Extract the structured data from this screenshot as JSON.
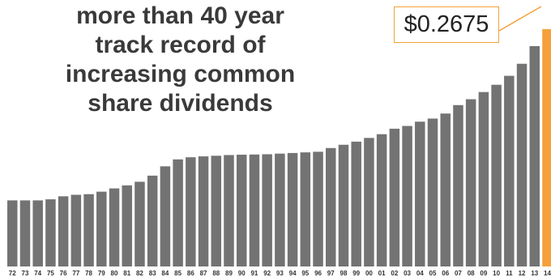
{
  "headline": {
    "line1": "more than 40 year",
    "line2": "track record of",
    "line3": "increasing common",
    "line4": "share dividends"
  },
  "callout": {
    "label": "$0.2675"
  },
  "colors": {
    "bar": "#737373",
    "highlight": "#f5a03a",
    "callout_border": "#f4a13a"
  },
  "chart_data": {
    "type": "bar",
    "title": "more than 40 year track record of increasing common share dividends",
    "categories": [
      "72",
      "73",
      "74",
      "75",
      "76",
      "77",
      "78",
      "79",
      "80",
      "81",
      "82",
      "83",
      "84",
      "85",
      "86",
      "87",
      "88",
      "89",
      "90",
      "91",
      "92",
      "93",
      "94",
      "95",
      "96",
      "97",
      "98",
      "99",
      "00",
      "01",
      "02",
      "03",
      "04",
      "05",
      "06",
      "07",
      "08",
      "09",
      "10",
      "11",
      "12",
      "13",
      "14"
    ],
    "values": [
      0.0745,
      0.0745,
      0.0745,
      0.0757,
      0.0791,
      0.0808,
      0.0815,
      0.0843,
      0.088,
      0.0914,
      0.0955,
      0.1024,
      0.1129,
      0.1207,
      0.1231,
      0.1241,
      0.1248,
      0.1256,
      0.126,
      0.1262,
      0.1265,
      0.1272,
      0.1279,
      0.1286,
      0.1293,
      0.1335,
      0.1372,
      0.1407,
      0.1449,
      0.1491,
      0.1553,
      0.1584,
      0.1632,
      0.1667,
      0.1724,
      0.1819,
      0.1885,
      0.1966,
      0.2048,
      0.2149,
      0.2285,
      0.2484,
      0.2675
    ],
    "highlight_index": 42,
    "xlabel": "",
    "ylabel": "",
    "ylim": [
      0,
      0.2675
    ],
    "grid": false,
    "legend": "none"
  }
}
